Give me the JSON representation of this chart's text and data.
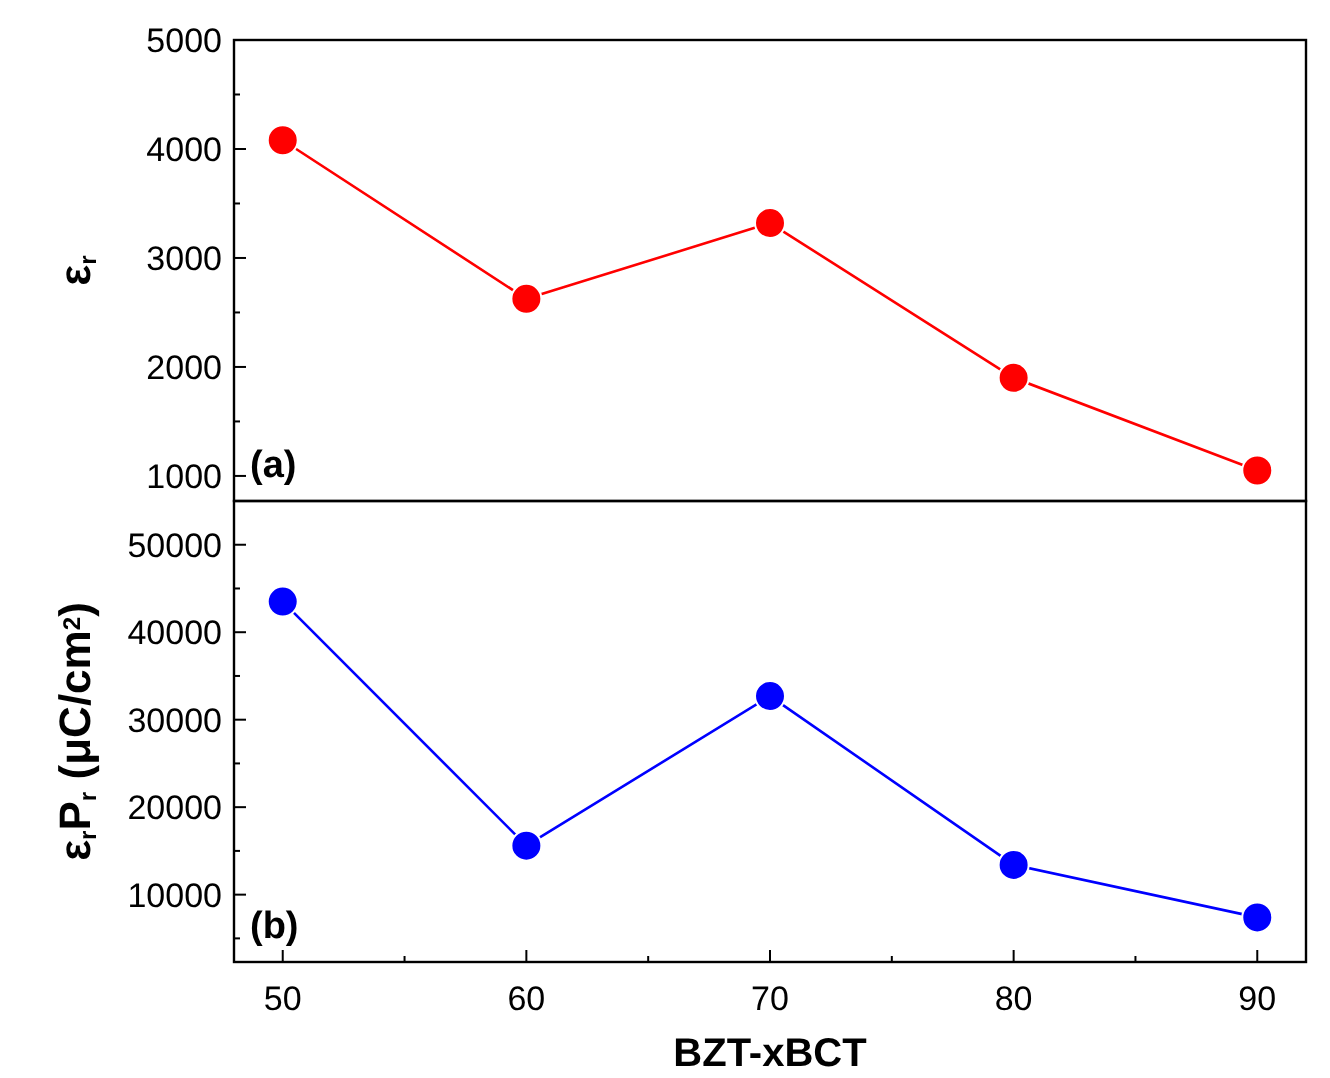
{
  "chart_data": [
    {
      "type": "line",
      "x": [
        50,
        60,
        70,
        80,
        90
      ],
      "ylabel": "ε$_{r}$",
      "annotations": [
        "(a)"
      ],
      "xlim": [
        48,
        92
      ],
      "ylim": [
        770,
        5000
      ],
      "yticks": [
        1000,
        {
          "value": 1500,
          "label": null
        },
        2000,
        {
          "value": 2500,
          "label": null
        },
        3000,
        {
          "value": 3500,
          "label": null
        },
        4000,
        {
          "value": 4500,
          "label": null
        },
        5000
      ],
      "tick_labels": "y",
      "marker": "circle",
      "grid": false,
      "series": [
        {
          "color": "#ff0000",
          "values": [
            4080,
            2625,
            3320,
            1900,
            1050
          ]
        }
      ]
    },
    {
      "type": "line",
      "x": [
        50,
        60,
        70,
        80,
        90
      ],
      "xlabel": "BZT-xBCT",
      "ylabel": "ε$_{r}$P$_{r}$ (μC/cm$^{2}$)",
      "annotations": [
        "(b)"
      ],
      "xlim": [
        48,
        92
      ],
      "xticks": [
        50,
        {
          "value": 55,
          "label": null
        },
        60,
        {
          "value": 65,
          "label": null
        },
        70,
        {
          "value": 75,
          "label": null
        },
        80,
        {
          "value": 85,
          "label": null
        },
        90
      ],
      "ylim": [
        2300,
        55000
      ],
      "yticks": [
        {
          "value": 5000,
          "label": null
        },
        10000,
        {
          "value": 15000,
          "label": null
        },
        20000,
        {
          "value": 25000,
          "label": null
        },
        30000,
        {
          "value": 35000,
          "label": null
        },
        40000,
        {
          "value": 45000,
          "label": null
        },
        50000
      ],
      "marker": "circle",
      "grid": false,
      "series": [
        {
          "color": "#0000ff",
          "values": [
            43500,
            15600,
            32700,
            13400,
            7400
          ]
        }
      ]
    }
  ]
}
